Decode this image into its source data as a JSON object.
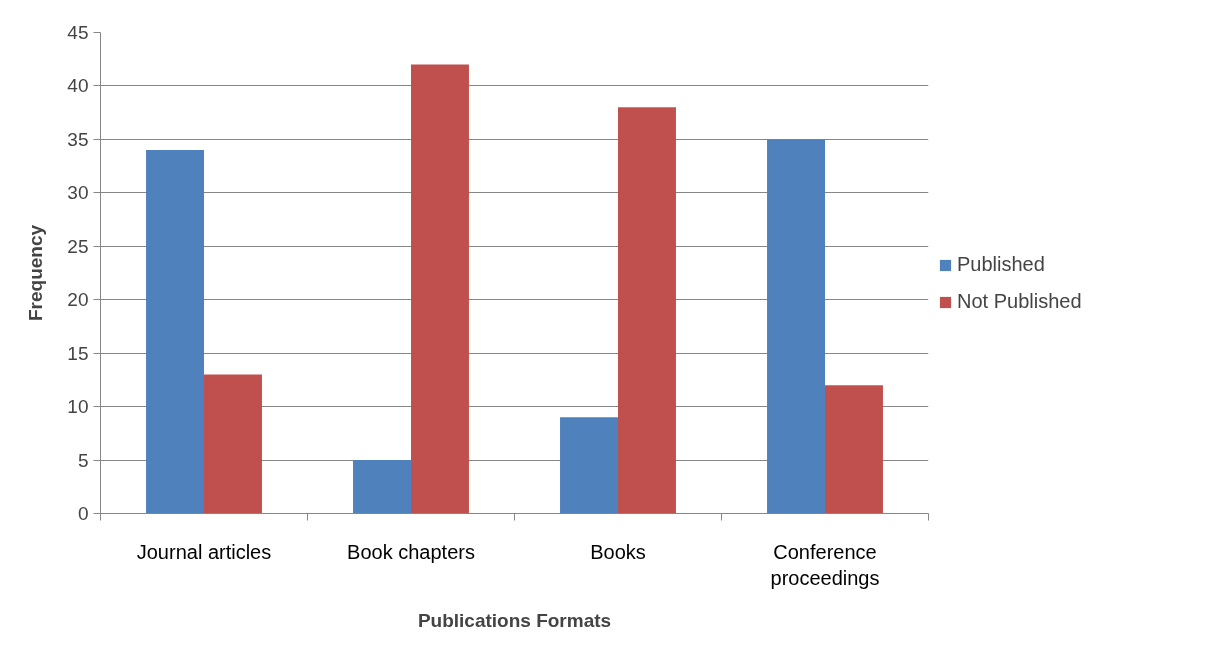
{
  "chart_data": {
    "type": "bar",
    "xlabel": "Publications Formats",
    "ylabel": "Frequency",
    "categories": [
      "Journal articles",
      "Book chapters",
      "Books",
      "Conference proceedings"
    ],
    "series": [
      {
        "name": "Published",
        "color": "#4f81bd",
        "values": [
          34,
          5,
          9,
          35
        ]
      },
      {
        "name": "Not Published",
        "color": "#c0504d",
        "values": [
          13,
          42,
          38,
          12
        ]
      }
    ],
    "ylim": [
      0,
      45
    ],
    "yticks": [
      0,
      5,
      10,
      15,
      20,
      25,
      30,
      35,
      40,
      45
    ],
    "grid": "y",
    "legend": "right"
  }
}
